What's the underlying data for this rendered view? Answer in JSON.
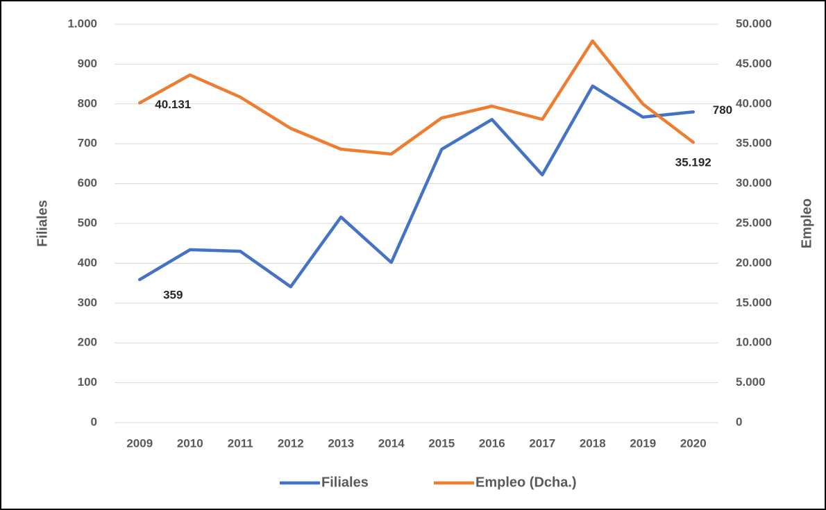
{
  "chart_data": {
    "type": "line",
    "categories": [
      "2009",
      "2010",
      "2011",
      "2012",
      "2013",
      "2014",
      "2015",
      "2016",
      "2017",
      "2018",
      "2019",
      "2020"
    ],
    "series": [
      {
        "name": "Filiales",
        "color": "#4472c4",
        "axis": "y",
        "values": [
          359,
          434,
          430,
          341,
          516,
          402,
          686,
          761,
          622,
          845,
          767,
          780
        ],
        "value_labels": [
          "359",
          null,
          null,
          null,
          null,
          null,
          null,
          null,
          null,
          null,
          null,
          "780"
        ]
      },
      {
        "name": "Empleo (Dcha.)",
        "color": "#ed7d31",
        "axis": "y2",
        "values": [
          40131,
          43641,
          40854,
          36934,
          34321,
          33711,
          38240,
          39721,
          38066,
          47909,
          39983,
          35192
        ],
        "value_labels": [
          "40.131",
          null,
          null,
          null,
          null,
          null,
          null,
          null,
          null,
          null,
          null,
          "35.192"
        ]
      }
    ],
    "ylabel": "Filiales",
    "y2label": "Empleo",
    "ylim": [
      0,
      1000
    ],
    "yticks": [
      0,
      100,
      200,
      300,
      400,
      500,
      600,
      700,
      800,
      900,
      {
        "value": 1000,
        "label": "1.000"
      }
    ],
    "y2lim": [
      0,
      50000
    ],
    "y2ticks": [
      0,
      {
        "value": 5000,
        "label": "5.000"
      },
      {
        "value": 10000,
        "label": "10.000"
      },
      {
        "value": 15000,
        "label": "15.000"
      },
      {
        "value": 20000,
        "label": "20.000"
      },
      {
        "value": 25000,
        "label": "25.000"
      },
      {
        "value": 30000,
        "label": "30.000"
      },
      {
        "value": 35000,
        "label": "35.000"
      },
      {
        "value": 40000,
        "label": "40.000"
      },
      {
        "value": 45000,
        "label": "45.000"
      },
      {
        "value": 50000,
        "label": "50.000"
      }
    ],
    "grid": true,
    "legend": "bottom"
  }
}
